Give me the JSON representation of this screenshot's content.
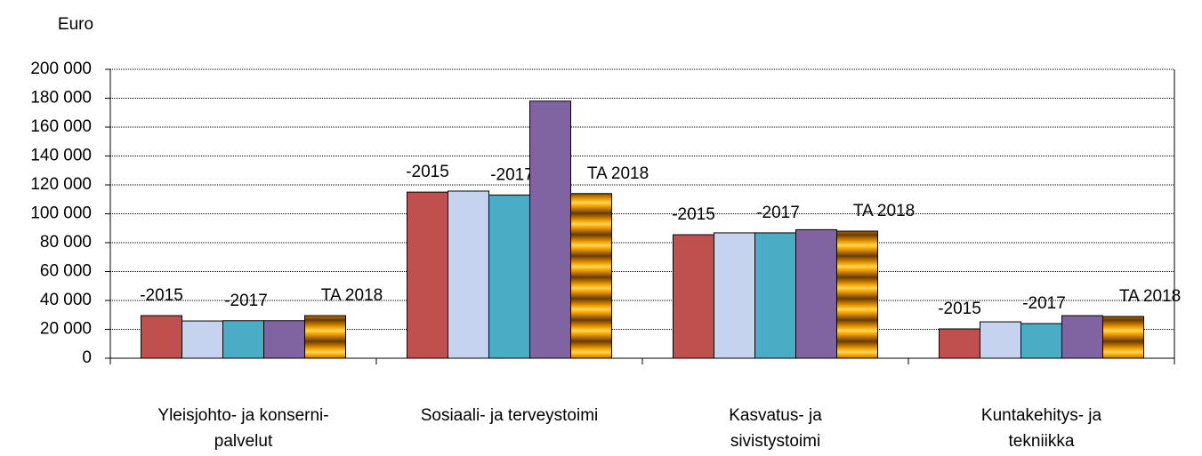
{
  "chart_data": {
    "type": "bar",
    "y_label": "Euro",
    "categories": [
      [
        "Yleisjohto- ja konserni-",
        "palvelut"
      ],
      [
        "Sosiaali- ja terveystoimi"
      ],
      [
        "Kasvatus- ja",
        "sivistystoimi"
      ],
      [
        "Kuntakehitys- ja",
        "tekniikka"
      ]
    ],
    "series": [
      {
        "name": "-2015",
        "color": "#c0504d",
        "values": [
          29500,
          115000,
          85500,
          20300
        ]
      },
      {
        "color": "#c5d3ee",
        "values": [
          25800,
          115700,
          86800,
          25200
        ]
      },
      {
        "name": "-2017",
        "color": "#4bacc6",
        "values": [
          26000,
          113000,
          86800,
          24000
        ]
      },
      {
        "color": "#8064a2",
        "values": [
          26000,
          178000,
          89000,
          29500
        ]
      },
      {
        "name": "TA 2018",
        "color": "#f5a300",
        "values": [
          29500,
          114000,
          88000,
          28900
        ]
      }
    ],
    "ylim": [
      0,
      200000
    ],
    "yticks": [
      {
        "value": 0,
        "label": "0"
      },
      {
        "value": 20000,
        "label": "20 000"
      },
      {
        "value": 40000,
        "label": "40 000"
      },
      {
        "value": 60000,
        "label": "60 000"
      },
      {
        "value": 80000,
        "label": "80 000"
      },
      {
        "value": 100000,
        "label": "100 000"
      },
      {
        "value": 120000,
        "label": "120 000"
      },
      {
        "value": 140000,
        "label": "140 000"
      },
      {
        "value": 160000,
        "label": "160 000"
      },
      {
        "value": 180000,
        "label": "180 000"
      },
      {
        "value": 200000,
        "label": "200 000"
      }
    ],
    "grid": true
  }
}
